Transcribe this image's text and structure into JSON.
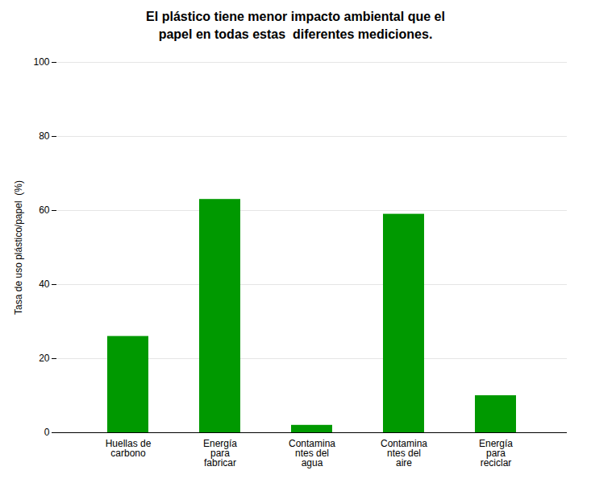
{
  "chart_data": {
    "type": "bar",
    "title": "El plástico tiene menor impacto ambiental que el\npapel en todas estas  diferentes mediciones.",
    "categories": [
      "Huellas de\ncarbono",
      "Energía\npara\nfabricar",
      "Contamina\nntes del\nagua",
      "Contamina\nntes del\naire",
      "Energía\npara\nreciclar"
    ],
    "values": [
      26,
      63,
      2,
      59,
      10
    ],
    "color": "#009900",
    "ylabel": "Tasa de uso plástico/papel  (%)",
    "ylim": [
      0,
      100
    ],
    "yticks": [
      0,
      20,
      40,
      60,
      80,
      100
    ],
    "grid": true
  }
}
